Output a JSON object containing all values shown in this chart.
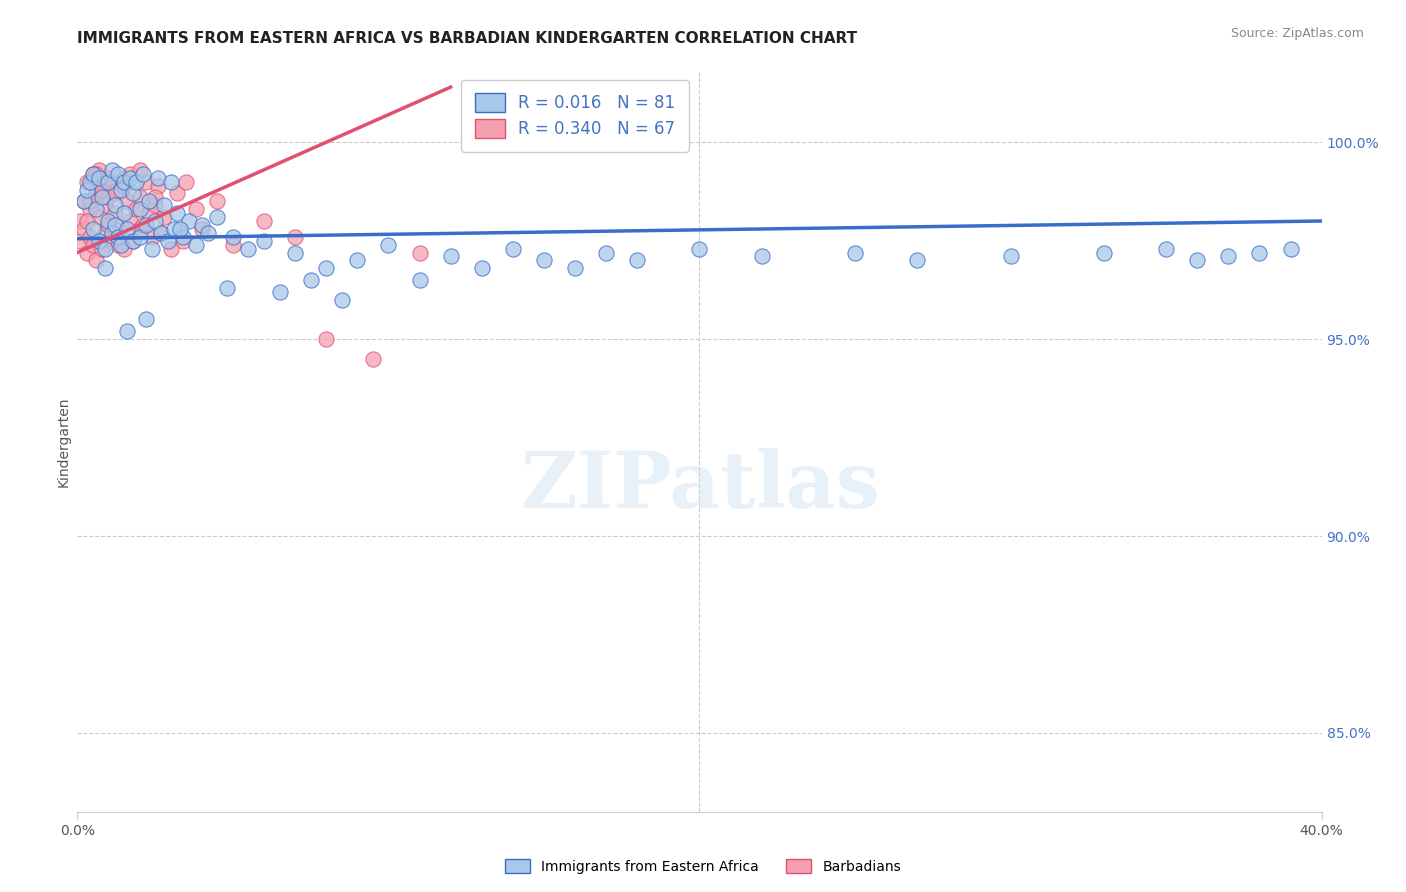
{
  "title": "IMMIGRANTS FROM EASTERN AFRICA VS BARBADIAN KINDERGARTEN CORRELATION CHART",
  "source_text": "Source: ZipAtlas.com",
  "ylabel": "Kindergarten",
  "xlim": [
    0.0,
    40.0
  ],
  "ylim": [
    83.0,
    101.8
  ],
  "xticklabels": [
    "0.0%",
    "40.0%"
  ],
  "xtickvals": [
    0.0,
    40.0
  ],
  "right_yticklabels": [
    "85.0%",
    "90.0%",
    "95.0%",
    "100.0%"
  ],
  "right_ytickvals": [
    85.0,
    90.0,
    95.0,
    100.0
  ],
  "blue_R": 0.016,
  "blue_N": 81,
  "pink_R": 0.34,
  "pink_N": 67,
  "blue_color": "#A8C8E8",
  "pink_color": "#F4A0B0",
  "blue_line_color": "#3A6DC7",
  "pink_line_color": "#E05070",
  "legend_label_blue": "Immigrants from Eastern Africa",
  "legend_label_pink": "Barbadians",
  "watermark": "ZIPatlas",
  "blue_scatter_x": [
    0.2,
    0.3,
    0.4,
    0.5,
    0.5,
    0.6,
    0.7,
    0.7,
    0.8,
    0.9,
    1.0,
    1.0,
    1.1,
    1.1,
    1.2,
    1.2,
    1.3,
    1.3,
    1.4,
    1.4,
    1.5,
    1.5,
    1.6,
    1.7,
    1.8,
    1.8,
    1.9,
    2.0,
    2.0,
    2.1,
    2.2,
    2.3,
    2.4,
    2.5,
    2.6,
    2.7,
    2.8,
    2.9,
    3.0,
    3.1,
    3.2,
    3.4,
    3.6,
    3.8,
    4.0,
    4.2,
    4.5,
    5.0,
    5.5,
    6.0,
    7.0,
    8.0,
    9.0,
    10.0,
    11.0,
    12.0,
    13.0,
    14.0,
    15.0,
    16.0,
    17.0,
    18.0,
    20.0,
    22.0,
    25.0,
    27.0,
    30.0,
    33.0,
    35.0,
    36.0,
    37.0,
    38.0,
    39.0,
    6.5,
    7.5,
    8.5,
    4.8,
    3.3,
    2.2,
    1.6,
    0.9
  ],
  "blue_scatter_y": [
    98.5,
    98.8,
    99.0,
    97.8,
    99.2,
    98.3,
    97.5,
    99.1,
    98.6,
    97.3,
    99.0,
    98.0,
    97.7,
    99.3,
    98.4,
    97.9,
    99.2,
    97.6,
    98.8,
    97.4,
    99.0,
    98.2,
    97.8,
    99.1,
    97.5,
    98.7,
    99.0,
    97.6,
    98.3,
    99.2,
    97.9,
    98.5,
    97.3,
    98.0,
    99.1,
    97.7,
    98.4,
    97.5,
    99.0,
    97.8,
    98.2,
    97.6,
    98.0,
    97.4,
    97.9,
    97.7,
    98.1,
    97.6,
    97.3,
    97.5,
    97.2,
    96.8,
    97.0,
    97.4,
    96.5,
    97.1,
    96.8,
    97.3,
    97.0,
    96.8,
    97.2,
    97.0,
    97.3,
    97.1,
    97.2,
    97.0,
    97.1,
    97.2,
    97.3,
    97.0,
    97.1,
    97.2,
    97.3,
    96.2,
    96.5,
    96.0,
    96.3,
    97.8,
    95.5,
    95.2,
    96.8
  ],
  "pink_scatter_x": [
    0.1,
    0.1,
    0.2,
    0.2,
    0.3,
    0.3,
    0.4,
    0.4,
    0.5,
    0.5,
    0.6,
    0.6,
    0.7,
    0.7,
    0.8,
    0.8,
    0.9,
    0.9,
    1.0,
    1.0,
    1.1,
    1.1,
    1.2,
    1.2,
    1.3,
    1.3,
    1.4,
    1.5,
    1.5,
    1.6,
    1.7,
    1.7,
    1.8,
    1.9,
    2.0,
    2.0,
    2.1,
    2.2,
    2.3,
    2.4,
    2.5,
    2.6,
    2.7,
    2.8,
    3.0,
    3.2,
    3.4,
    3.5,
    3.8,
    4.0,
    4.5,
    5.0,
    6.0,
    7.0,
    8.0,
    9.5,
    11.0,
    0.3,
    0.4,
    0.5,
    0.6,
    0.8,
    1.0,
    1.2,
    1.5,
    2.0,
    2.5
  ],
  "pink_scatter_y": [
    97.5,
    98.0,
    97.8,
    98.5,
    97.2,
    99.0,
    97.6,
    98.3,
    97.4,
    99.2,
    97.0,
    98.7,
    98.1,
    99.3,
    97.3,
    98.9,
    97.7,
    98.4,
    97.9,
    98.6,
    97.5,
    99.0,
    97.8,
    98.2,
    97.4,
    98.8,
    97.6,
    99.1,
    97.3,
    98.5,
    98.0,
    99.2,
    97.5,
    98.3,
    97.8,
    98.6,
    97.9,
    99.0,
    98.2,
    97.6,
    98.4,
    98.9,
    97.7,
    98.1,
    97.3,
    98.7,
    97.5,
    99.0,
    98.3,
    97.8,
    98.5,
    97.4,
    98.0,
    97.6,
    95.0,
    94.5,
    97.2,
    98.0,
    98.5,
    99.0,
    99.2,
    98.8,
    99.1,
    98.7,
    98.9,
    99.3,
    98.6
  ],
  "grid_color": "#cccccc",
  "background_color": "#ffffff",
  "title_fontsize": 11,
  "axis_label_fontsize": 10,
  "tick_fontsize": 10,
  "right_tick_color": "#4472C4",
  "blue_trend_x": [
    0.0,
    40.0
  ],
  "blue_trend_y": [
    97.55,
    98.0
  ],
  "pink_trend_x": [
    0.0,
    12.0
  ],
  "pink_trend_y": [
    97.2,
    101.4
  ]
}
